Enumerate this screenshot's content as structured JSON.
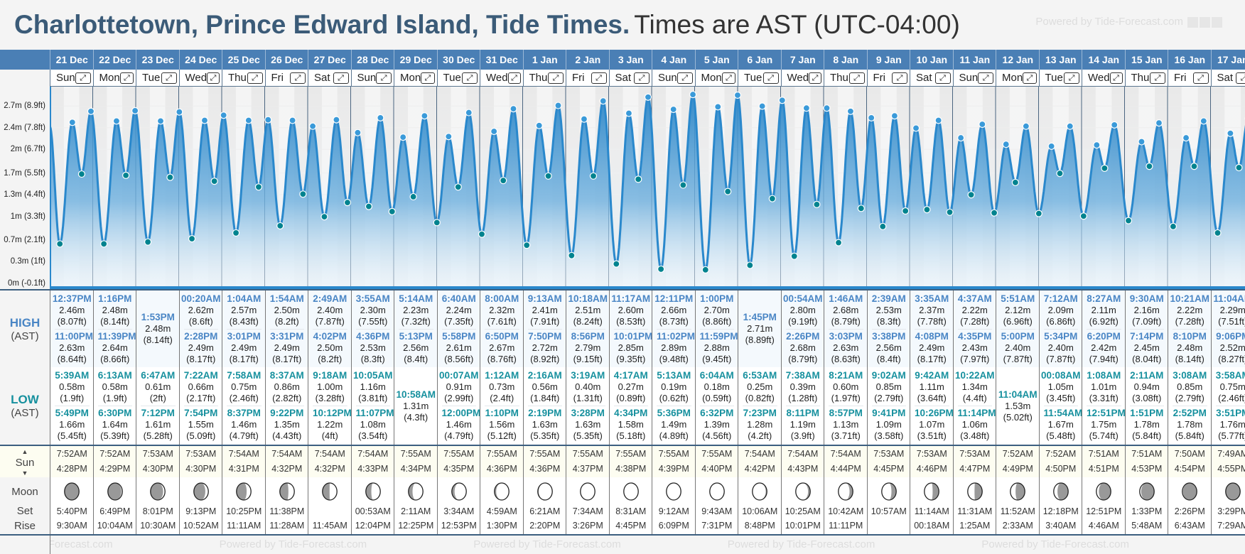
{
  "title": {
    "location": "Charlottetown, Prince Edward Island, Tide Times.",
    "timezone": "Times are AST (UTC-04:00)"
  },
  "powered_by": "Powered by Tide-Forecast.com",
  "labels": {
    "high": "HIGH",
    "low": "LOW",
    "ast": "(AST)",
    "sun": "Sun",
    "sun_up": "▲",
    "sun_down": "▼",
    "moon": "Moon",
    "set": "Set",
    "rise": "Rise",
    "expand_icon": "⤢"
  },
  "colors": {
    "header": "#4a7fb5",
    "high_time": "#4a86c5",
    "low_time": "#16909e",
    "high_dot": "#3a9ad9",
    "low_dot": "#00838f",
    "line": "#2a88cc"
  },
  "chart_data": {
    "type": "area",
    "title": "Tide height",
    "ylabel": "Height (m / ft)",
    "ylim_ft": [
      -0.1,
      10.1
    ],
    "start_level_m": 2.4,
    "yticks": [
      {
        "ft": -0.1,
        "label": "0m (-0.1ft)"
      },
      {
        "ft": 1.0,
        "label": "0.3m (1ft)"
      },
      {
        "ft": 2.1,
        "label": "0.7m (2.1ft)"
      },
      {
        "ft": 3.3,
        "label": "1m (3.3ft)"
      },
      {
        "ft": 4.4,
        "label": "1.3m (4.4ft)"
      },
      {
        "ft": 5.5,
        "label": "1.7m (5.5ft)"
      },
      {
        "ft": 6.7,
        "label": "2m (6.7ft)"
      },
      {
        "ft": 7.8,
        "label": "2.4m (7.8ft)"
      },
      {
        "ft": 8.9,
        "label": "2.7m (8.9ft)"
      }
    ],
    "series_source": "days.highs + days.lows"
  },
  "days": [
    {
      "date": "21 Dec",
      "dow": "Sun",
      "highs": [
        {
          "time": "12:37PM",
          "m": "2.46m",
          "ft": "(8.07ft)"
        },
        {
          "time": "11:00PM",
          "m": "2.63m",
          "ft": "(8.64ft)"
        }
      ],
      "lows": [
        {
          "time": "5:39AM",
          "m": "0.58m",
          "ft": "(1.9ft)"
        },
        {
          "time": "5:49PM",
          "m": "1.66m",
          "ft": "(5.45ft)"
        }
      ],
      "sunrise": "7:52AM",
      "sunset": "4:28PM",
      "moonset": "5:40PM",
      "moonrise": "9:30AM",
      "moon_illum": 0.03,
      "waxing": true
    },
    {
      "date": "22 Dec",
      "dow": "Mon",
      "highs": [
        {
          "time": "1:16PM",
          "m": "2.48m",
          "ft": "(8.14ft)"
        },
        {
          "time": "11:39PM",
          "m": "2.64m",
          "ft": "(8.66ft)"
        }
      ],
      "lows": [
        {
          "time": "6:13AM",
          "m": "0.58m",
          "ft": "(1.9ft)"
        },
        {
          "time": "6:30PM",
          "m": "1.64m",
          "ft": "(5.39ft)"
        }
      ],
      "sunrise": "7:52AM",
      "sunset": "4:29PM",
      "moonset": "6:49PM",
      "moonrise": "10:04AM",
      "moon_illum": 0.07,
      "waxing": true
    },
    {
      "date": "23 Dec",
      "dow": "Tue",
      "highs": [
        {
          "time": "1:53PM",
          "m": "2.48m",
          "ft": "(8.14ft)"
        }
      ],
      "lows": [
        {
          "time": "6:47AM",
          "m": "0.61m",
          "ft": "(2ft)"
        },
        {
          "time": "7:12PM",
          "m": "1.61m",
          "ft": "(5.28ft)"
        }
      ],
      "sunrise": "7:53AM",
      "sunset": "4:30PM",
      "moonset": "8:01PM",
      "moonrise": "10:30AM",
      "moon_illum": 0.13,
      "waxing": true
    },
    {
      "date": "24 Dec",
      "dow": "Wed",
      "highs": [
        {
          "time": "00:20AM",
          "m": "2.62m",
          "ft": "(8.6ft)"
        },
        {
          "time": "2:28PM",
          "m": "2.49m",
          "ft": "(8.17ft)"
        }
      ],
      "lows": [
        {
          "time": "7:22AM",
          "m": "0.66m",
          "ft": "(2.17ft)"
        },
        {
          "time": "7:54PM",
          "m": "1.55m",
          "ft": "(5.09ft)"
        }
      ],
      "sunrise": "7:53AM",
      "sunset": "4:30PM",
      "moonset": "9:13PM",
      "moonrise": "10:52AM",
      "moon_illum": 0.21,
      "waxing": true
    },
    {
      "date": "25 Dec",
      "dow": "Thu",
      "highs": [
        {
          "time": "1:04AM",
          "m": "2.57m",
          "ft": "(8.43ft)"
        },
        {
          "time": "3:01PM",
          "m": "2.49m",
          "ft": "(8.17ft)"
        }
      ],
      "lows": [
        {
          "time": "7:58AM",
          "m": "0.75m",
          "ft": "(2.46ft)"
        },
        {
          "time": "8:37PM",
          "m": "1.46m",
          "ft": "(4.79ft)"
        }
      ],
      "sunrise": "7:54AM",
      "sunset": "4:31PM",
      "moonset": "10:25PM",
      "moonrise": "11:11AM",
      "moon_illum": 0.3,
      "waxing": true
    },
    {
      "date": "26 Dec",
      "dow": "Fri",
      "highs": [
        {
          "time": "1:54AM",
          "m": "2.50m",
          "ft": "(8.2ft)"
        },
        {
          "time": "3:31PM",
          "m": "2.49m",
          "ft": "(8.17ft)"
        }
      ],
      "lows": [
        {
          "time": "8:37AM",
          "m": "0.86m",
          "ft": "(2.82ft)"
        },
        {
          "time": "9:22PM",
          "m": "1.35m",
          "ft": "(4.43ft)"
        }
      ],
      "sunrise": "7:54AM",
      "sunset": "4:32PM",
      "moonset": "11:38PM",
      "moonrise": "11:28AM",
      "moon_illum": 0.41,
      "waxing": true
    },
    {
      "date": "27 Dec",
      "dow": "Sat",
      "highs": [
        {
          "time": "2:49AM",
          "m": "2.40m",
          "ft": "(7.87ft)"
        },
        {
          "time": "4:02PM",
          "m": "2.50m",
          "ft": "(8.2ft)"
        }
      ],
      "lows": [
        {
          "time": "9:18AM",
          "m": "1.00m",
          "ft": "(3.28ft)"
        },
        {
          "time": "10:12PM",
          "m": "1.22m",
          "ft": "(4ft)"
        }
      ],
      "sunrise": "7:54AM",
      "sunset": "4:32PM",
      "moonset": "",
      "moonrise": "11:45AM",
      "moon_illum": 0.51,
      "waxing": true
    },
    {
      "date": "28 Dec",
      "dow": "Sun",
      "highs": [
        {
          "time": "3:55AM",
          "m": "2.30m",
          "ft": "(7.55ft)"
        },
        {
          "time": "4:36PM",
          "m": "2.53m",
          "ft": "(8.3ft)"
        }
      ],
      "lows": [
        {
          "time": "10:05AM",
          "m": "1.16m",
          "ft": "(3.81ft)"
        },
        {
          "time": "11:07PM",
          "m": "1.08m",
          "ft": "(3.54ft)"
        }
      ],
      "sunrise": "7:54AM",
      "sunset": "4:33PM",
      "moonset": "00:53AM",
      "moonrise": "12:04PM",
      "moon_illum": 0.62,
      "waxing": true
    },
    {
      "date": "29 Dec",
      "dow": "Mon",
      "highs": [
        {
          "time": "5:14AM",
          "m": "2.23m",
          "ft": "(7.32ft)"
        },
        {
          "time": "5:13PM",
          "m": "2.56m",
          "ft": "(8.4ft)"
        }
      ],
      "lows": [
        {
          "time": "10:58AM",
          "m": "1.31m",
          "ft": "(4.3ft)"
        }
      ],
      "sunrise": "7:55AM",
      "sunset": "4:34PM",
      "moonset": "2:11AM",
      "moonrise": "12:25PM",
      "moon_illum": 0.72,
      "waxing": true
    },
    {
      "date": "30 Dec",
      "dow": "Tue",
      "highs": [
        {
          "time": "6:40AM",
          "m": "2.24m",
          "ft": "(7.35ft)"
        },
        {
          "time": "5:58PM",
          "m": "2.61m",
          "ft": "(8.56ft)"
        }
      ],
      "lows": [
        {
          "time": "00:07AM",
          "m": "0.91m",
          "ft": "(2.99ft)"
        },
        {
          "time": "12:00PM",
          "m": "1.46m",
          "ft": "(4.79ft)"
        }
      ],
      "sunrise": "7:55AM",
      "sunset": "4:35PM",
      "moonset": "3:34AM",
      "moonrise": "12:53PM",
      "moon_illum": 0.81,
      "waxing": true
    },
    {
      "date": "31 Dec",
      "dow": "Wed",
      "highs": [
        {
          "time": "8:00AM",
          "m": "2.32m",
          "ft": "(7.61ft)"
        },
        {
          "time": "6:50PM",
          "m": "2.67m",
          "ft": "(8.76ft)"
        }
      ],
      "lows": [
        {
          "time": "1:12AM",
          "m": "0.73m",
          "ft": "(2.4ft)"
        },
        {
          "time": "1:10PM",
          "m": "1.56m",
          "ft": "(5.12ft)"
        }
      ],
      "sunrise": "7:55AM",
      "sunset": "4:36PM",
      "moonset": "4:59AM",
      "moonrise": "1:30PM",
      "moon_illum": 0.88,
      "waxing": true
    },
    {
      "date": "1 Jan",
      "dow": "Thu",
      "highs": [
        {
          "time": "9:13AM",
          "m": "2.41m",
          "ft": "(7.91ft)"
        },
        {
          "time": "7:50PM",
          "m": "2.72m",
          "ft": "(8.92ft)"
        }
      ],
      "lows": [
        {
          "time": "2:16AM",
          "m": "0.56m",
          "ft": "(1.84ft)"
        },
        {
          "time": "2:19PM",
          "m": "1.63m",
          "ft": "(5.35ft)"
        }
      ],
      "sunrise": "7:55AM",
      "sunset": "4:36PM",
      "moonset": "6:21AM",
      "moonrise": "2:20PM",
      "moon_illum": 0.94,
      "waxing": true
    },
    {
      "date": "2 Jan",
      "dow": "Fri",
      "highs": [
        {
          "time": "10:18AM",
          "m": "2.51m",
          "ft": "(8.24ft)"
        },
        {
          "time": "8:56PM",
          "m": "2.79m",
          "ft": "(9.15ft)"
        }
      ],
      "lows": [
        {
          "time": "3:19AM",
          "m": "0.40m",
          "ft": "(1.31ft)"
        },
        {
          "time": "3:28PM",
          "m": "1.63m",
          "ft": "(5.35ft)"
        }
      ],
      "sunrise": "7:55AM",
      "sunset": "4:37PM",
      "moonset": "7:34AM",
      "moonrise": "3:26PM",
      "moon_illum": 0.98,
      "waxing": true
    },
    {
      "date": "3 Jan",
      "dow": "Sat",
      "highs": [
        {
          "time": "11:17AM",
          "m": "2.60m",
          "ft": "(8.53ft)"
        },
        {
          "time": "10:01PM",
          "m": "2.85m",
          "ft": "(9.35ft)"
        }
      ],
      "lows": [
        {
          "time": "4:17AM",
          "m": "0.27m",
          "ft": "(0.89ft)"
        },
        {
          "time": "4:34PM",
          "m": "1.58m",
          "ft": "(5.18ft)"
        }
      ],
      "sunrise": "7:55AM",
      "sunset": "4:38PM",
      "moonset": "8:31AM",
      "moonrise": "4:45PM",
      "moon_illum": 1.0,
      "waxing": true
    },
    {
      "date": "4 Jan",
      "dow": "Sun",
      "highs": [
        {
          "time": "12:11PM",
          "m": "2.66m",
          "ft": "(8.73ft)"
        },
        {
          "time": "11:02PM",
          "m": "2.89m",
          "ft": "(9.48ft)"
        }
      ],
      "lows": [
        {
          "time": "5:13AM",
          "m": "0.19m",
          "ft": "(0.62ft)"
        },
        {
          "time": "5:36PM",
          "m": "1.49m",
          "ft": "(4.89ft)"
        }
      ],
      "sunrise": "7:55AM",
      "sunset": "4:39PM",
      "moonset": "9:12AM",
      "moonrise": "6:09PM",
      "moon_illum": 0.99,
      "waxing": false
    },
    {
      "date": "5 Jan",
      "dow": "Mon",
      "highs": [
        {
          "time": "1:00PM",
          "m": "2.70m",
          "ft": "(8.86ft)"
        },
        {
          "time": "11:59PM",
          "m": "2.88m",
          "ft": "(9.45ft)"
        }
      ],
      "lows": [
        {
          "time": "6:04AM",
          "m": "0.18m",
          "ft": "(0.59ft)"
        },
        {
          "time": "6:32PM",
          "m": "1.39m",
          "ft": "(4.56ft)"
        }
      ],
      "sunrise": "7:55AM",
      "sunset": "4:40PM",
      "moonset": "9:43AM",
      "moonrise": "7:31PM",
      "moon_illum": 0.97,
      "waxing": false
    },
    {
      "date": "6 Jan",
      "dow": "Tue",
      "highs": [
        {
          "time": "1:45PM",
          "m": "2.71m",
          "ft": "(8.89ft)"
        }
      ],
      "lows": [
        {
          "time": "6:53AM",
          "m": "0.25m",
          "ft": "(0.82ft)"
        },
        {
          "time": "7:23PM",
          "m": "1.28m",
          "ft": "(4.2ft)"
        }
      ],
      "sunrise": "7:54AM",
      "sunset": "4:42PM",
      "moonset": "10:06AM",
      "moonrise": "8:48PM",
      "moon_illum": 0.92,
      "waxing": false
    },
    {
      "date": "7 Jan",
      "dow": "Wed",
      "highs": [
        {
          "time": "00:54AM",
          "m": "2.80m",
          "ft": "(9.19ft)"
        },
        {
          "time": "2:26PM",
          "m": "2.68m",
          "ft": "(8.79ft)"
        }
      ],
      "lows": [
        {
          "time": "7:38AM",
          "m": "0.39m",
          "ft": "(1.28ft)"
        },
        {
          "time": "8:11PM",
          "m": "1.19m",
          "ft": "(3.9ft)"
        }
      ],
      "sunrise": "7:54AM",
      "sunset": "4:43PM",
      "moonset": "10:25AM",
      "moonrise": "10:01PM",
      "moon_illum": 0.85,
      "waxing": false
    },
    {
      "date": "8 Jan",
      "dow": "Thu",
      "highs": [
        {
          "time": "1:46AM",
          "m": "2.68m",
          "ft": "(8.79ft)"
        },
        {
          "time": "3:03PM",
          "m": "2.63m",
          "ft": "(8.63ft)"
        }
      ],
      "lows": [
        {
          "time": "8:21AM",
          "m": "0.60m",
          "ft": "(1.97ft)"
        },
        {
          "time": "8:57PM",
          "m": "1.13m",
          "ft": "(3.71ft)"
        }
      ],
      "sunrise": "7:54AM",
      "sunset": "4:44PM",
      "moonset": "10:42AM",
      "moonrise": "11:11PM",
      "moon_illum": 0.77,
      "waxing": false
    },
    {
      "date": "9 Jan",
      "dow": "Fri",
      "highs": [
        {
          "time": "2:39AM",
          "m": "2.53m",
          "ft": "(8.3ft)"
        },
        {
          "time": "3:38PM",
          "m": "2.56m",
          "ft": "(8.4ft)"
        }
      ],
      "lows": [
        {
          "time": "9:02AM",
          "m": "0.85m",
          "ft": "(2.79ft)"
        },
        {
          "time": "9:41PM",
          "m": "1.09m",
          "ft": "(3.58ft)"
        }
      ],
      "sunrise": "7:53AM",
      "sunset": "4:45PM",
      "moonset": "10:57AM",
      "moonrise": "",
      "moon_illum": 0.67,
      "waxing": false
    },
    {
      "date": "10 Jan",
      "dow": "Sat",
      "highs": [
        {
          "time": "3:35AM",
          "m": "2.37m",
          "ft": "(7.78ft)"
        },
        {
          "time": "4:08PM",
          "m": "2.49m",
          "ft": "(8.17ft)"
        }
      ],
      "lows": [
        {
          "time": "9:42AM",
          "m": "1.11m",
          "ft": "(3.64ft)"
        },
        {
          "time": "10:26PM",
          "m": "1.07m",
          "ft": "(3.51ft)"
        }
      ],
      "sunrise": "7:53AM",
      "sunset": "4:46PM",
      "moonset": "11:14AM",
      "moonrise": "00:18AM",
      "moon_illum": 0.57,
      "waxing": false
    },
    {
      "date": "11 Jan",
      "dow": "Sun",
      "highs": [
        {
          "time": "4:37AM",
          "m": "2.22m",
          "ft": "(7.28ft)"
        },
        {
          "time": "4:35PM",
          "m": "2.43m",
          "ft": "(7.97ft)"
        }
      ],
      "lows": [
        {
          "time": "10:22AM",
          "m": "1.34m",
          "ft": "(4.4ft)"
        },
        {
          "time": "11:14PM",
          "m": "1.06m",
          "ft": "(3.48ft)"
        }
      ],
      "sunrise": "7:53AM",
      "sunset": "4:47PM",
      "moonset": "11:31AM",
      "moonrise": "1:25AM",
      "moon_illum": 0.47,
      "waxing": false
    },
    {
      "date": "12 Jan",
      "dow": "Mon",
      "highs": [
        {
          "time": "5:51AM",
          "m": "2.12m",
          "ft": "(6.96ft)"
        },
        {
          "time": "5:00PM",
          "m": "2.40m",
          "ft": "(7.87ft)"
        }
      ],
      "lows": [
        {
          "time": "11:04AM",
          "m": "1.53m",
          "ft": "(5.02ft)"
        }
      ],
      "sunrise": "7:52AM",
      "sunset": "4:49PM",
      "moonset": "11:52AM",
      "moonrise": "2:33AM",
      "moon_illum": 0.36,
      "waxing": false
    },
    {
      "date": "13 Jan",
      "dow": "Tue",
      "highs": [
        {
          "time": "7:12AM",
          "m": "2.09m",
          "ft": "(6.86ft)"
        },
        {
          "time": "5:34PM",
          "m": "2.40m",
          "ft": "(7.87ft)"
        }
      ],
      "lows": [
        {
          "time": "00:08AM",
          "m": "1.05m",
          "ft": "(3.45ft)"
        },
        {
          "time": "11:54AM",
          "m": "1.67m",
          "ft": "(5.48ft)"
        }
      ],
      "sunrise": "7:52AM",
      "sunset": "4:50PM",
      "moonset": "12:18PM",
      "moonrise": "3:40AM",
      "moon_illum": 0.26,
      "waxing": false
    },
    {
      "date": "14 Jan",
      "dow": "Wed",
      "highs": [
        {
          "time": "8:27AM",
          "m": "2.11m",
          "ft": "(6.92ft)"
        },
        {
          "time": "6:20PM",
          "m": "2.42m",
          "ft": "(7.94ft)"
        }
      ],
      "lows": [
        {
          "time": "1:08AM",
          "m": "1.01m",
          "ft": "(3.31ft)"
        },
        {
          "time": "12:51PM",
          "m": "1.75m",
          "ft": "(5.74ft)"
        }
      ],
      "sunrise": "7:51AM",
      "sunset": "4:51PM",
      "moonset": "12:51PM",
      "moonrise": "4:46AM",
      "moon_illum": 0.17,
      "waxing": false
    },
    {
      "date": "15 Jan",
      "dow": "Thu",
      "highs": [
        {
          "time": "9:30AM",
          "m": "2.16m",
          "ft": "(7.09ft)"
        },
        {
          "time": "7:14PM",
          "m": "2.45m",
          "ft": "(8.04ft)"
        }
      ],
      "lows": [
        {
          "time": "2:11AM",
          "m": "0.94m",
          "ft": "(3.08ft)"
        },
        {
          "time": "1:51PM",
          "m": "1.78m",
          "ft": "(5.84ft)"
        }
      ],
      "sunrise": "7:51AM",
      "sunset": "4:53PM",
      "moonset": "1:33PM",
      "moonrise": "5:48AM",
      "moon_illum": 0.1,
      "waxing": false
    },
    {
      "date": "16 Jan",
      "dow": "Fri",
      "highs": [
        {
          "time": "10:21AM",
          "m": "2.22m",
          "ft": "(7.28ft)"
        },
        {
          "time": "8:10PM",
          "m": "2.48m",
          "ft": "(8.14ft)"
        }
      ],
      "lows": [
        {
          "time": "3:08AM",
          "m": "0.85m",
          "ft": "(2.79ft)"
        },
        {
          "time": "2:52PM",
          "m": "1.78m",
          "ft": "(5.84ft)"
        }
      ],
      "sunrise": "7:50AM",
      "sunset": "4:54PM",
      "moonset": "2:26PM",
      "moonrise": "6:43AM",
      "moon_illum": 0.05,
      "waxing": false
    },
    {
      "date": "17 Jan",
      "dow": "Sat",
      "highs": [
        {
          "time": "11:04AM",
          "m": "2.29m",
          "ft": "(7.51ft)"
        },
        {
          "time": "9:06PM",
          "m": "2.52m",
          "ft": "(8.27ft)"
        }
      ],
      "lows": [
        {
          "time": "3:58AM",
          "m": "0.75m",
          "ft": "(2.46ft)"
        },
        {
          "time": "3:51PM",
          "m": "1.76m",
          "ft": "(5.77ft)"
        }
      ],
      "sunrise": "7:49AM",
      "sunset": "4:55PM",
      "moonset": "3:29PM",
      "moonrise": "7:29AM",
      "moon_illum": 0.01,
      "waxing": false
    }
  ]
}
